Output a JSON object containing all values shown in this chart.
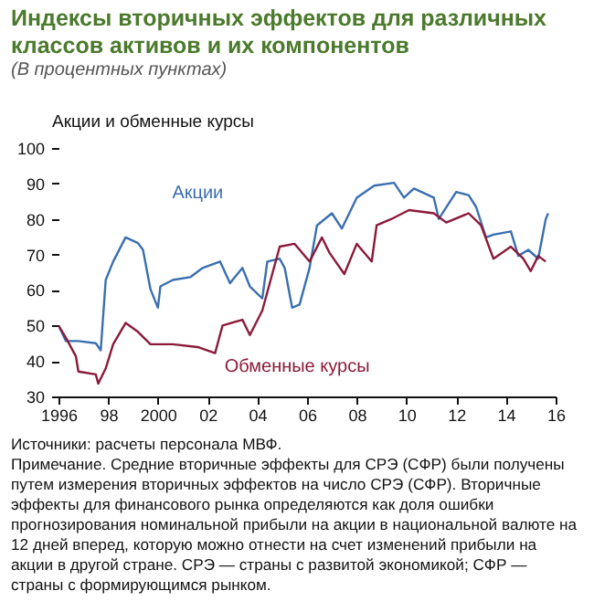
{
  "chart_data": {
    "type": "line",
    "title": "Индексы вторичных эффектов для различных классов активов и их компонентов",
    "subtitle": "(В процентных пунктах)",
    "ylabel": "Акции и обменные курсы",
    "xlim": [
      1996,
      2016
    ],
    "xticks": [
      1996,
      {
        "value": 1998,
        "label": "98"
      },
      2000,
      {
        "value": 2002,
        "label": "02"
      },
      {
        "value": 2004,
        "label": "04"
      },
      {
        "value": 2006,
        "label": "06"
      },
      {
        "value": 2008,
        "label": "08"
      },
      {
        "value": 2010,
        "label": "10"
      },
      {
        "value": 2012,
        "label": "12"
      },
      {
        "value": 2014,
        "label": "14"
      },
      {
        "value": 2016,
        "label": "16"
      }
    ],
    "ylim": [
      30,
      100
    ],
    "yticks": [
      30,
      40,
      50,
      60,
      70,
      80,
      90,
      100
    ],
    "grid": false,
    "legend": false,
    "marker": "none",
    "line_style": "solid",
    "series": [
      {
        "name": "Акции",
        "color": "#3a6fb0",
        "x": [
          1996.0,
          1996.3,
          1996.8,
          1997.5,
          1997.7,
          1997.9,
          1998.2,
          1998.7,
          1999.2,
          1999.4,
          1999.7,
          2000.0,
          2000.1,
          2000.6,
          2001.3,
          2001.8,
          2002.5,
          2002.9,
          2003.4,
          2003.7,
          2004.2,
          2004.4,
          2004.9,
          2005.1,
          2005.4,
          2005.7,
          2006.1,
          2006.4,
          2007.0,
          2007.4,
          2008.0,
          2008.7,
          2009.5,
          2009.9,
          2010.3,
          2011.1,
          2011.3,
          2012.0,
          2012.5,
          2012.8,
          2013.2,
          2013.5,
          2014.2,
          2014.5,
          2014.9,
          2015.3,
          2015.6,
          2015.7
        ],
        "values": [
          50,
          45.6,
          45.6,
          45,
          43,
          62.8,
          68,
          74.8,
          73.2,
          71.3,
          60.2,
          55,
          61,
          62.8,
          63.6,
          66.2,
          68,
          61.9,
          66.2,
          61,
          57.6,
          68,
          68.8,
          66.2,
          55,
          55.9,
          66.2,
          78.2,
          81.6,
          77.3,
          86,
          89.4,
          90.2,
          86,
          88.6,
          86,
          80,
          87.6,
          86.7,
          83.4,
          74.8,
          75.6,
          76.5,
          69.6,
          71.3,
          68.8,
          79.9,
          81.6
        ]
      },
      {
        "name": "Обменные курсы",
        "color": "#8b1a3a",
        "x": [
          1996.0,
          1996.3,
          1996.7,
          1996.8,
          1997.5,
          1997.6,
          1997.9,
          1998.2,
          1998.7,
          1999.2,
          1999.7,
          2000.6,
          2001.6,
          2002.3,
          2002.6,
          2003.4,
          2003.7,
          2004.2,
          2004.6,
          2004.9,
          2005.5,
          2006.1,
          2006.6,
          2006.9,
          2007.5,
          2008.0,
          2008.6,
          2008.8,
          2009.4,
          2010.1,
          2011.1,
          2011.6,
          2012.5,
          2013.0,
          2013.5,
          2014.2,
          2014.7,
          2015.0,
          2015.3,
          2015.6
        ],
        "values": [
          50,
          46.5,
          41.3,
          37,
          36.2,
          33.6,
          37.9,
          44.7,
          50.7,
          48.2,
          44.7,
          44.7,
          43.9,
          42.2,
          50,
          51.6,
          47.3,
          54.2,
          64.5,
          72.2,
          73,
          68,
          74.8,
          70.5,
          64.5,
          73,
          68,
          78.2,
          80,
          82.5,
          81.6,
          79,
          81.6,
          78.2,
          68.8,
          72.2,
          68.8,
          65.3,
          69.6,
          68
        ]
      }
    ],
    "annotations": [
      "Источники: расчеты персонала МВФ.",
      "Примечание. Средние вторичные эффекты для СРЭ (СФР) были получены путем измерения вторичных эффектов на число СРЭ (СФР). Вторичные эффекты для финансового рынка определяются как доля ошибки прогнозирования номинальной прибыли на акции в национальной валюте на 12 дней вперед, которую можно отнести на счет изменений прибыли на акции в другой стране. СРЭ — страны с развитой экономикой; СФР — страны с формирующимся рынком."
    ]
  }
}
